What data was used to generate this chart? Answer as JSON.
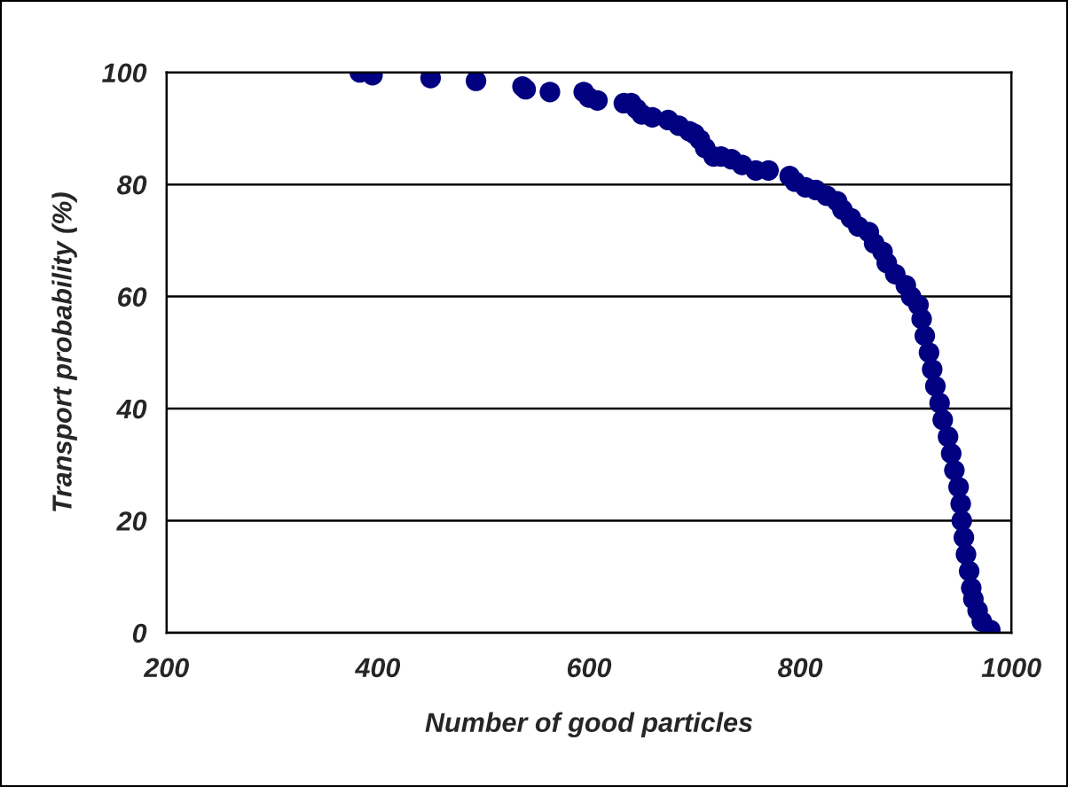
{
  "chart_data": {
    "type": "scatter",
    "xlabel": "Number of good particles",
    "ylabel": "Transport probability (%)",
    "x": [
      383,
      395,
      450,
      493,
      537,
      540,
      563,
      595,
      600,
      608,
      633,
      640,
      645,
      650,
      660,
      675,
      685,
      695,
      700,
      705,
      710,
      718,
      725,
      735,
      745,
      758,
      770,
      790,
      795,
      805,
      815,
      825,
      835,
      840,
      848,
      855,
      865,
      870,
      878,
      882,
      890,
      900,
      905,
      912,
      915,
      918,
      922,
      925,
      928,
      932,
      935,
      940,
      943,
      946,
      950,
      952,
      953,
      955,
      957,
      960,
      962,
      964,
      968,
      972,
      980
    ],
    "series": [
      {
        "color": "#000080",
        "values": [
          100,
          99.5,
          99,
          98.5,
          97.5,
          97,
          96.5,
          96.5,
          95.5,
          95,
          94.5,
          94.5,
          93.5,
          92.5,
          92,
          91.5,
          90.5,
          89.5,
          89,
          88,
          86.5,
          85,
          85,
          84.5,
          83.5,
          82.5,
          82.5,
          81.5,
          80.5,
          79.5,
          79,
          78,
          77,
          75.5,
          74,
          72.5,
          71.5,
          69.5,
          68,
          66,
          64,
          62,
          60,
          58.5,
          56,
          53,
          50,
          47,
          44,
          41,
          38,
          35,
          32,
          29,
          26,
          23,
          20,
          17,
          14,
          11,
          8,
          6,
          4,
          2,
          0.5
        ]
      }
    ],
    "xlim": [
      200,
      1000
    ],
    "xticks": [
      200,
      400,
      600,
      800,
      1000
    ],
    "ylim": [
      0,
      100
    ],
    "yticks": [
      0,
      20,
      40,
      60,
      80,
      100
    ],
    "grid": "y",
    "marker": "circle",
    "legend": false
  }
}
